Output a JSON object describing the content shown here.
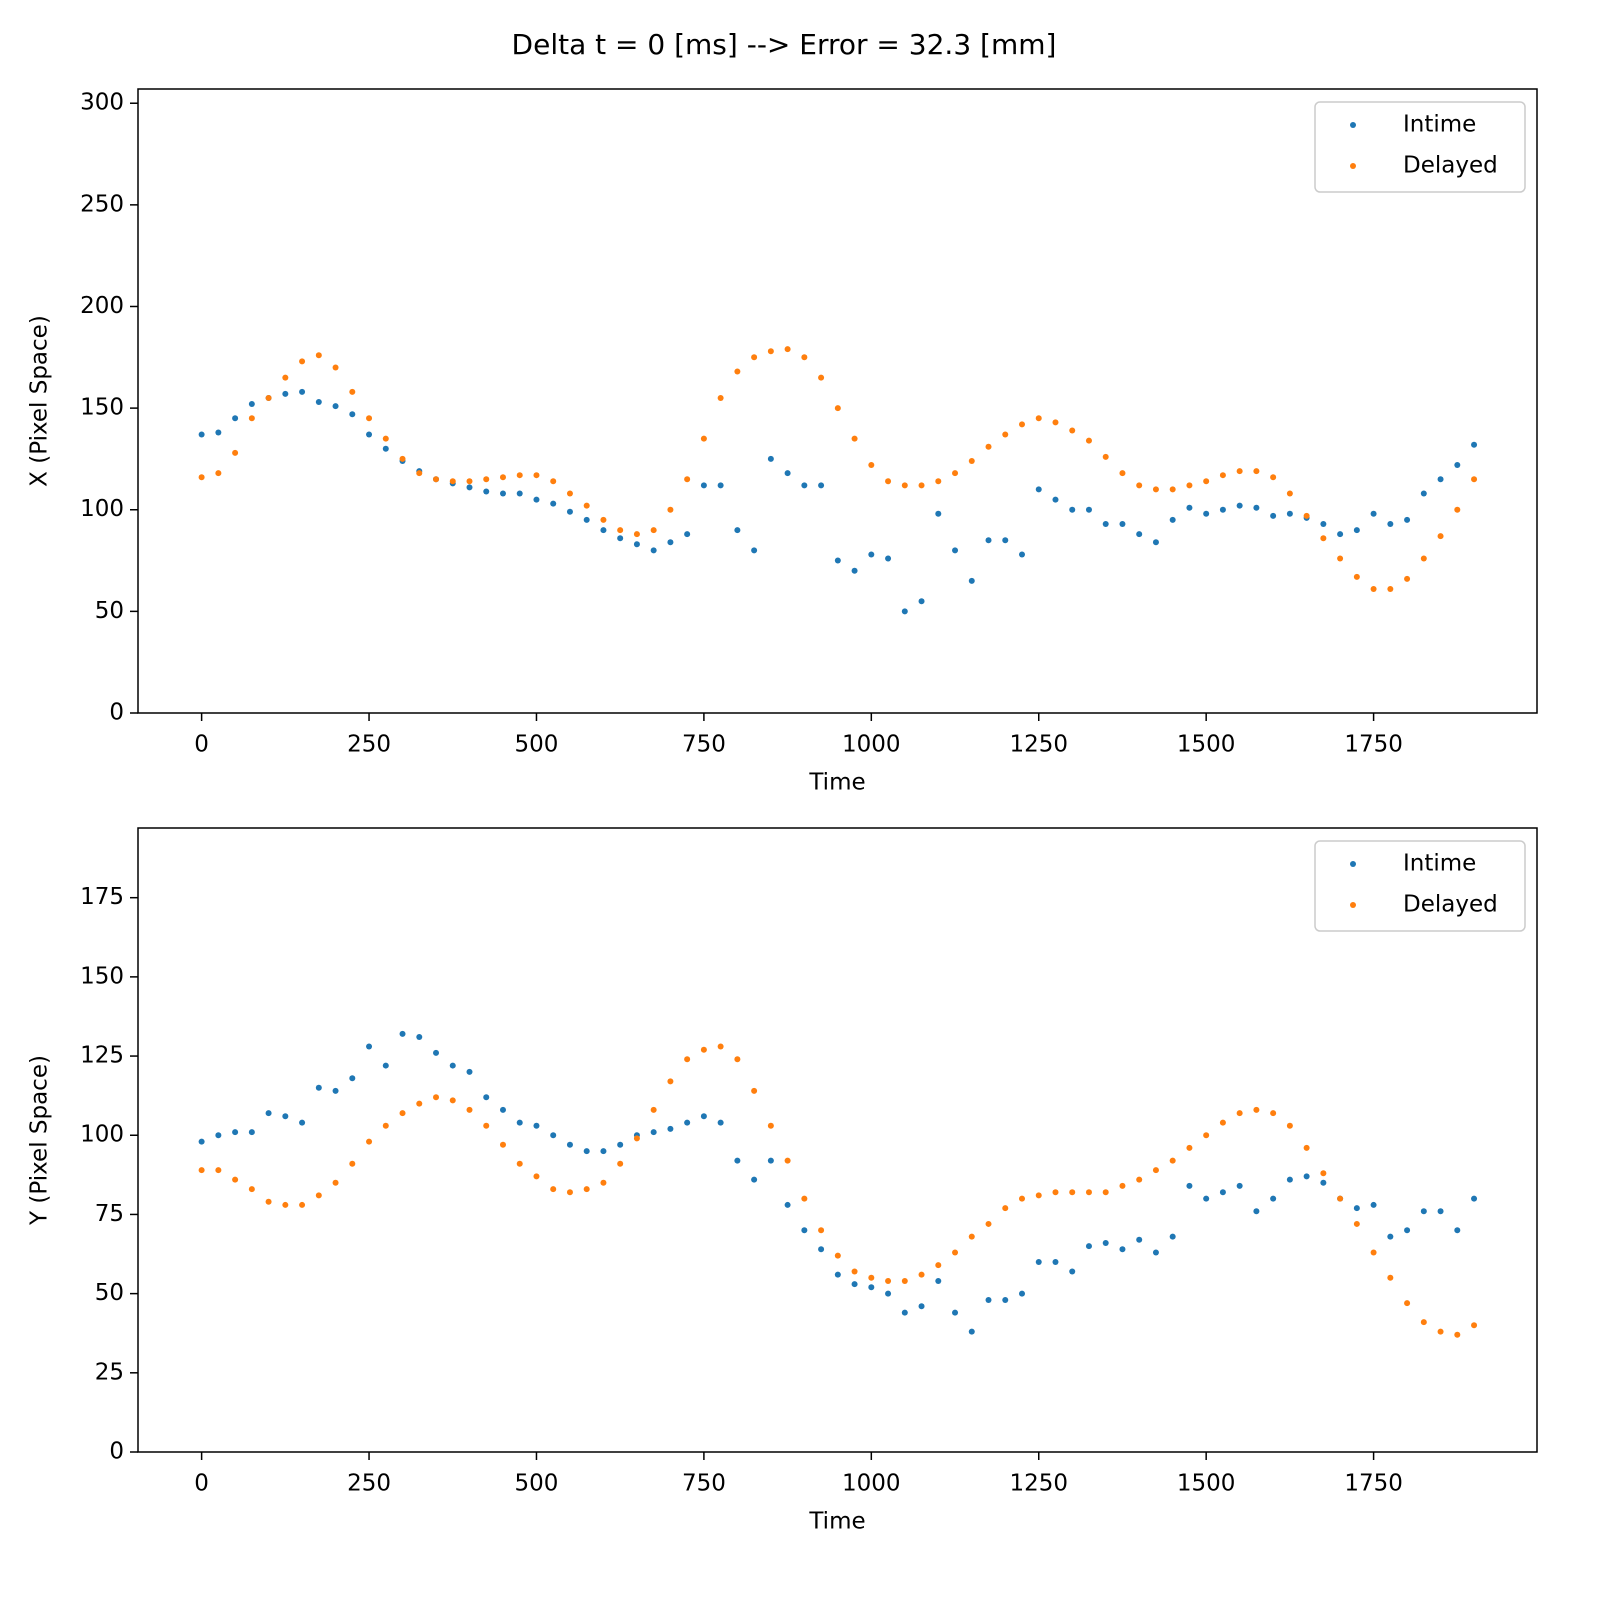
{
  "title": "Delta t = 0 [ms] --> Error = 32.3 [mm]",
  "chart_data": [
    {
      "type": "scatter",
      "xlabel": "Time",
      "ylabel": "X (Pixel Space)",
      "xlim": [
        -95,
        1994
      ],
      "ylim": [
        0,
        307
      ],
      "xticks": [
        0,
        250,
        500,
        750,
        1000,
        1250,
        1500,
        1750
      ],
      "yticks": [
        0,
        50,
        100,
        150,
        200,
        250,
        300
      ],
      "legend": "upper right",
      "x": [
        0,
        25,
        50,
        75,
        100,
        125,
        150,
        175,
        200,
        225,
        250,
        275,
        300,
        325,
        350,
        375,
        400,
        425,
        450,
        475,
        500,
        525,
        550,
        575,
        600,
        625,
        650,
        675,
        700,
        725,
        750,
        775,
        800,
        825,
        850,
        875,
        900,
        925,
        950,
        975,
        1000,
        1025,
        1050,
        1075,
        1100,
        1125,
        1150,
        1175,
        1200,
        1225,
        1250,
        1275,
        1300,
        1325,
        1350,
        1375,
        1400,
        1425,
        1450,
        1475,
        1500,
        1525,
        1550,
        1575,
        1600,
        1625,
        1650,
        1675,
        1700,
        1725,
        1750,
        1775,
        1800,
        1825,
        1850,
        1875,
        1900
      ],
      "series": [
        {
          "name": "Intime",
          "color": "#1f77b4",
          "values": [
            137,
            138,
            145,
            152,
            155,
            157,
            158,
            153,
            151,
            147,
            137,
            130,
            124,
            119,
            115,
            113,
            111,
            109,
            108,
            108,
            105,
            103,
            99,
            95,
            90,
            86,
            83,
            80,
            84,
            88,
            112,
            112,
            90,
            80,
            125,
            118,
            112,
            112,
            75,
            70,
            78,
            76,
            50,
            55,
            98,
            80,
            65,
            85,
            85,
            78,
            110,
            105,
            100,
            100,
            93,
            93,
            88,
            84,
            95,
            101,
            98,
            100,
            102,
            101,
            97,
            98,
            96,
            93,
            88,
            90,
            98,
            93,
            95,
            108,
            115,
            122,
            132
          ]
        },
        {
          "name": "Delayed",
          "color": "#ff7f0e",
          "values": [
            116,
            118,
            128,
            145,
            155,
            165,
            173,
            176,
            170,
            158,
            145,
            135,
            125,
            118,
            115,
            114,
            114,
            115,
            116,
            117,
            117,
            114,
            108,
            102,
            95,
            90,
            88,
            90,
            100,
            115,
            135,
            155,
            168,
            175,
            178,
            179,
            175,
            165,
            150,
            135,
            122,
            114,
            112,
            112,
            114,
            118,
            124,
            131,
            137,
            142,
            145,
            143,
            139,
            134,
            126,
            118,
            112,
            110,
            110,
            112,
            114,
            117,
            119,
            119,
            116,
            108,
            97,
            86,
            76,
            67,
            61,
            61,
            66,
            76,
            87,
            100,
            115
          ]
        }
      ]
    },
    {
      "type": "scatter",
      "xlabel": "Time",
      "ylabel": "Y (Pixel Space)",
      "xlim": [
        -95,
        1994
      ],
      "ylim": [
        0,
        197
      ],
      "xticks": [
        0,
        250,
        500,
        750,
        1000,
        1250,
        1500,
        1750
      ],
      "yticks": [
        0,
        25,
        50,
        75,
        100,
        125,
        150,
        175
      ],
      "legend": "upper right",
      "x": [
        0,
        25,
        50,
        75,
        100,
        125,
        150,
        175,
        200,
        225,
        250,
        275,
        300,
        325,
        350,
        375,
        400,
        425,
        450,
        475,
        500,
        525,
        550,
        575,
        600,
        625,
        650,
        675,
        700,
        725,
        750,
        775,
        800,
        825,
        850,
        875,
        900,
        925,
        950,
        975,
        1000,
        1025,
        1050,
        1075,
        1100,
        1125,
        1150,
        1175,
        1200,
        1225,
        1250,
        1275,
        1300,
        1325,
        1350,
        1375,
        1400,
        1425,
        1450,
        1475,
        1500,
        1525,
        1550,
        1575,
        1600,
        1625,
        1650,
        1675,
        1700,
        1725,
        1750,
        1775,
        1800,
        1825,
        1850,
        1875,
        1900
      ],
      "series": [
        {
          "name": "Intime",
          "color": "#1f77b4",
          "values": [
            98,
            100,
            101,
            101,
            107,
            106,
            104,
            115,
            114,
            118,
            128,
            122,
            132,
            131,
            126,
            122,
            120,
            112,
            108,
            104,
            103,
            100,
            97,
            95,
            95,
            97,
            100,
            101,
            102,
            104,
            106,
            104,
            92,
            86,
            92,
            78,
            70,
            64,
            56,
            53,
            52,
            50,
            44,
            46,
            54,
            44,
            38,
            48,
            48,
            50,
            60,
            60,
            57,
            65,
            66,
            64,
            67,
            63,
            68,
            84,
            80,
            82,
            84,
            76,
            80,
            86,
            87,
            85,
            80,
            77,
            78,
            68,
            70,
            76,
            76,
            70,
            80
          ]
        },
        {
          "name": "Delayed",
          "color": "#ff7f0e",
          "values": [
            89,
            89,
            86,
            83,
            79,
            78,
            78,
            81,
            85,
            91,
            98,
            103,
            107,
            110,
            112,
            111,
            108,
            103,
            97,
            91,
            87,
            83,
            82,
            83,
            85,
            91,
            99,
            108,
            117,
            124,
            127,
            128,
            124,
            114,
            103,
            92,
            80,
            70,
            62,
            57,
            55,
            54,
            54,
            56,
            59,
            63,
            68,
            72,
            77,
            80,
            81,
            82,
            82,
            82,
            82,
            84,
            86,
            89,
            92,
            96,
            100,
            104,
            107,
            108,
            107,
            103,
            96,
            88,
            80,
            72,
            63,
            55,
            47,
            41,
            38,
            37,
            40
          ]
        }
      ]
    }
  ]
}
